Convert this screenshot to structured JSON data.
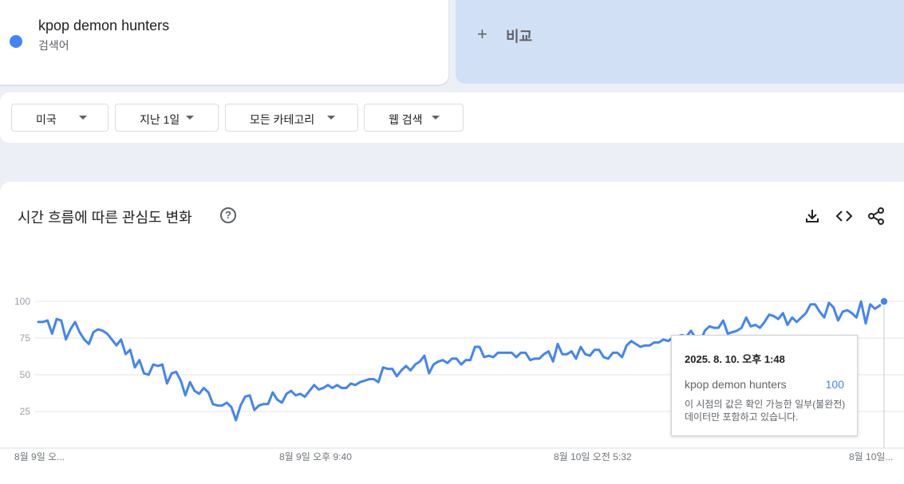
{
  "term": {
    "name": "kpop demon hunters",
    "type": "검색어",
    "color": "#4285f4"
  },
  "compare": {
    "plus": "+",
    "label": "비교"
  },
  "filters": [
    {
      "label": "미국"
    },
    {
      "label": "지난 1일"
    },
    {
      "label": "모든 카테고리"
    },
    {
      "label": "웹 검색"
    }
  ],
  "chart_section": {
    "title": "시간 흐름에 따른 관심도 변화",
    "help": "?"
  },
  "tools": {
    "download_icon": "download-icon",
    "embed_icon": "embed-code-icon",
    "share_icon": "share-icon"
  },
  "tooltip": {
    "date": "2025. 8. 10. 오후 1:48",
    "term": "kpop demon hunters",
    "value": "100",
    "note": "이 시점의 값은 확인 가능한 일부(불완전) 데이터만 포함하고 있습니다."
  },
  "chart_data": {
    "type": "line",
    "title": "",
    "xlabel": "",
    "ylabel": "",
    "ylim": [
      0,
      100
    ],
    "yticks": [
      25,
      50,
      75,
      100
    ],
    "x_tick_labels": [
      "8월 9일 오...",
      "8월 9일 오후 9:40",
      "8월 10일 오전 5:32",
      "8월 10일..."
    ],
    "line_color": "#4285f4",
    "grid": true,
    "series": [
      {
        "values": [
          86,
          86,
          87,
          78,
          88,
          87,
          74,
          81,
          86,
          79,
          74,
          71,
          79,
          81,
          80,
          78,
          74,
          70,
          74,
          64,
          67,
          55,
          60,
          51,
          50,
          57,
          56,
          57,
          44,
          51,
          52,
          46,
          36,
          45,
          39,
          37,
          41,
          38,
          30,
          29,
          29,
          31,
          28,
          19,
          29,
          35,
          36,
          26,
          29,
          30,
          30,
          38,
          33,
          31,
          37,
          39,
          36,
          37,
          35,
          39,
          43,
          40,
          41,
          43,
          41,
          43,
          41,
          41,
          44,
          43,
          45,
          46,
          47,
          47,
          45,
          55,
          54,
          54,
          49,
          53,
          56,
          53,
          57,
          59,
          63,
          51,
          57,
          59,
          60,
          58,
          61,
          61,
          57,
          60,
          60,
          69,
          69,
          62,
          63,
          62,
          65,
          65,
          65,
          65,
          62,
          65,
          65,
          60,
          61,
          61,
          64,
          66,
          59,
          71,
          64,
          64,
          66,
          61,
          69,
          64,
          63,
          67,
          67,
          62,
          61,
          65,
          65,
          62,
          70,
          73,
          71,
          69,
          70,
          70,
          72,
          72,
          74,
          73,
          75,
          76,
          77,
          76,
          80,
          75,
          72,
          80,
          83,
          82,
          82,
          87,
          78,
          79,
          80,
          82,
          89,
          83,
          84,
          82,
          86,
          91,
          90,
          88,
          92,
          84,
          89,
          86,
          89,
          92,
          98,
          98,
          93,
          89,
          99,
          96,
          87,
          93,
          94,
          92,
          89,
          100,
          85,
          98,
          95,
          97,
          100
        ]
      }
    ]
  }
}
